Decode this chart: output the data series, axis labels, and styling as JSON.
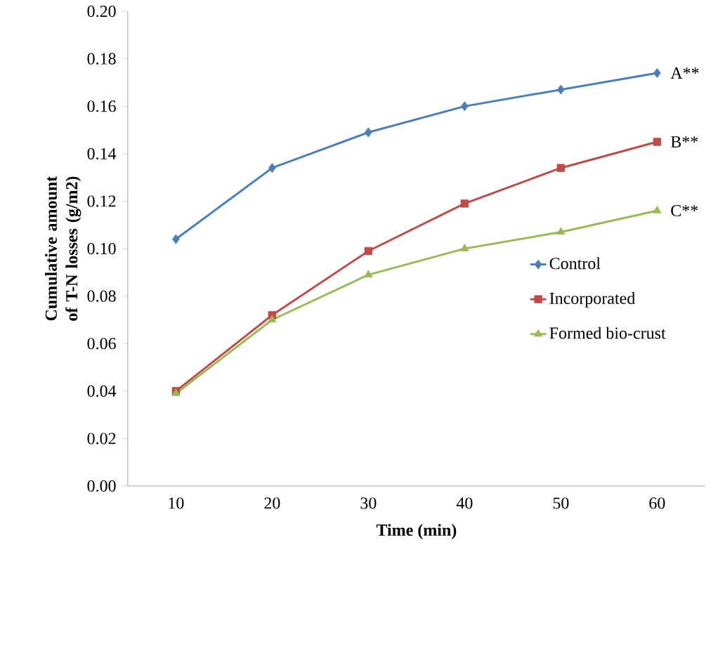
{
  "chart_data": {
    "type": "line",
    "xlabel": "Time (min)",
    "ylabel": "Cumulative amount of T-N losses (g/m2)",
    "categories": [
      "10",
      "20",
      "30",
      "40",
      "50",
      "60"
    ],
    "series": [
      {
        "name": "Control",
        "color": "#4a7ebb",
        "marker": "diamond",
        "values": [
          0.104,
          0.134,
          0.149,
          0.16,
          0.167,
          0.174
        ]
      },
      {
        "name": "Incorporated",
        "color": "#be4b48",
        "marker": "square",
        "values": [
          0.04,
          0.072,
          0.099,
          0.119,
          0.134,
          0.145
        ]
      },
      {
        "name": "Formed bio-crust",
        "color": "#98b954",
        "marker": "triangle",
        "values": [
          0.039,
          0.07,
          0.089,
          0.1,
          0.107,
          0.116
        ]
      }
    ],
    "ylim": [
      0,
      0.2
    ],
    "yticks": [
      {
        "value": 0,
        "label": "0.00"
      },
      {
        "value": 0.02,
        "label": "0.02"
      },
      {
        "value": 0.04,
        "label": "0.04"
      },
      {
        "value": 0.06,
        "label": "0.06"
      },
      {
        "value": 0.08,
        "label": "0.08"
      },
      {
        "value": 0.1,
        "label": "0.10"
      },
      {
        "value": 0.12,
        "label": "0.12"
      },
      {
        "value": 0.14,
        "label": "0.14"
      },
      {
        "value": 0.16,
        "label": "0.16"
      },
      {
        "value": 0.18,
        "label": "0.18"
      },
      {
        "value": 0.2,
        "label": "0.20"
      }
    ],
    "annotations": [
      {
        "text": "A**",
        "x": "60",
        "y": 0.174
      },
      {
        "text": "B**",
        "x": "60",
        "y": 0.145
      },
      {
        "text": "C**",
        "x": "60",
        "y": 0.116
      }
    ],
    "grid": false,
    "legend": "right"
  }
}
